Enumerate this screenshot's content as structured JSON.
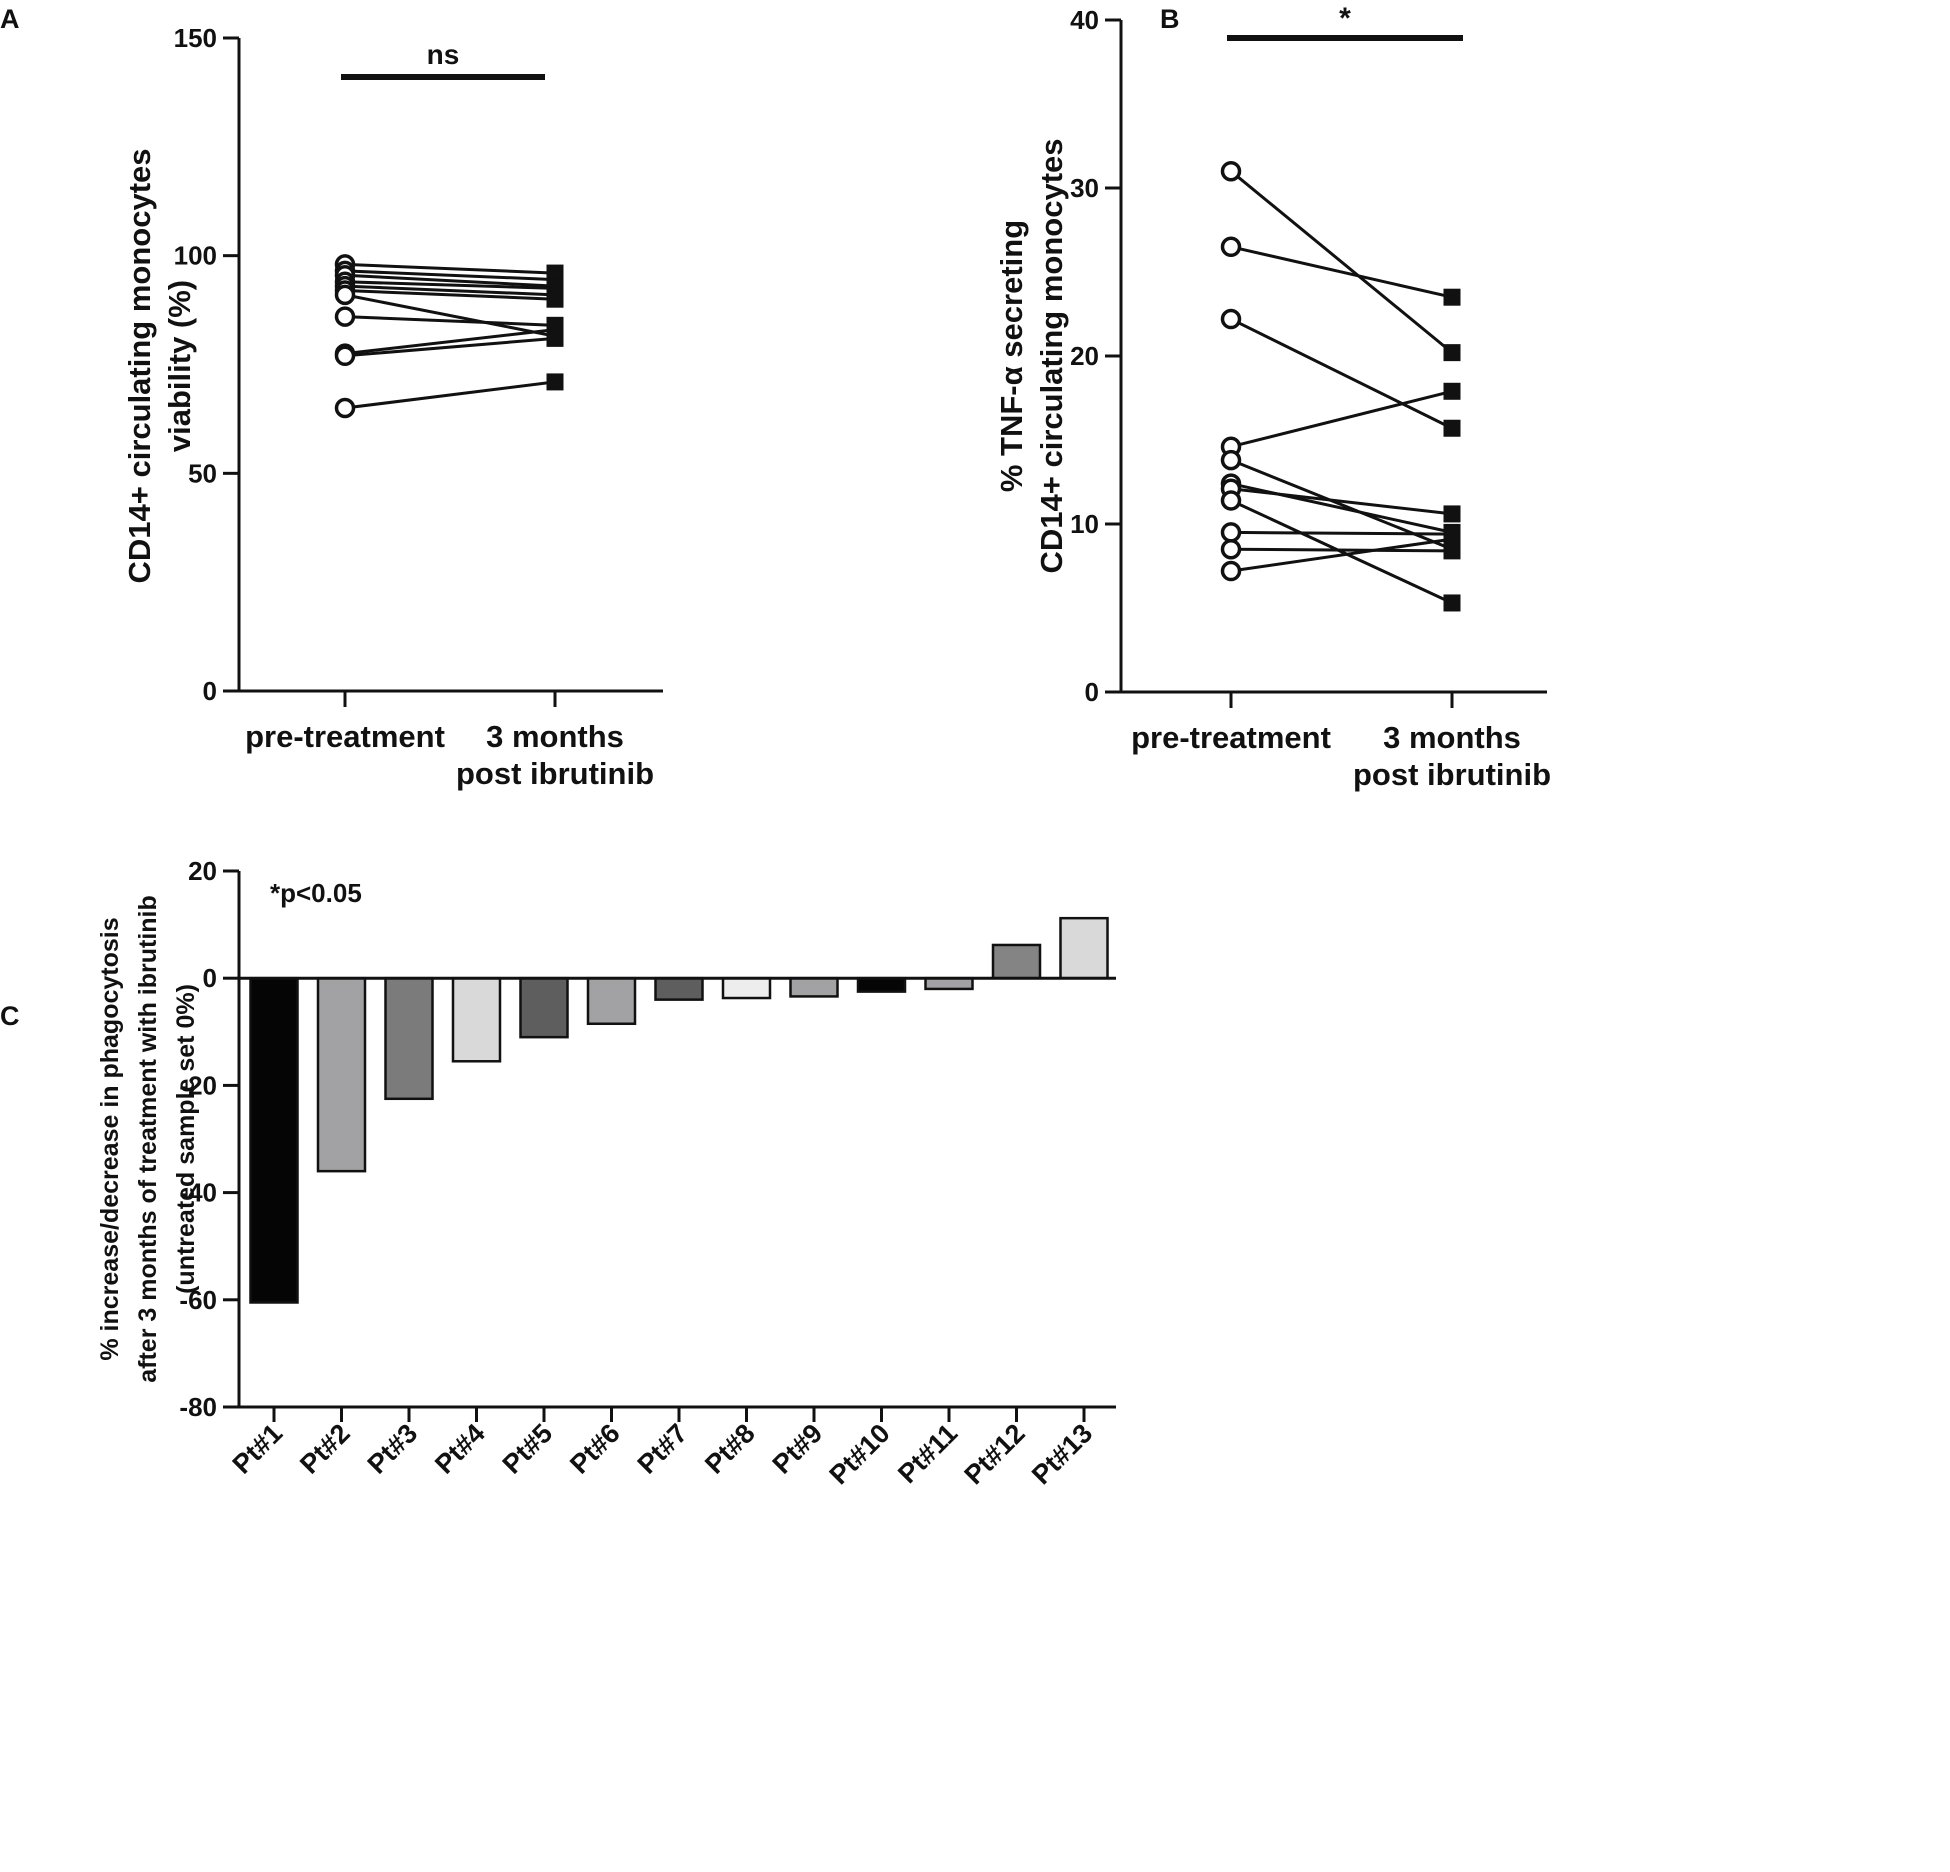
{
  "chart_data": [
    {
      "panel": "A",
      "type": "paired-scatter",
      "categories": [
        "pre-treatment",
        "3 months\npost ibrutinib"
      ],
      "ylabel": "CD14+ circulating monocytes\nviability  (%)",
      "ylim": [
        0,
        150
      ],
      "yticks": [
        0,
        50,
        100,
        150
      ],
      "significance": "ns",
      "pairs": [
        [
          98,
          96
        ],
        [
          96.5,
          94.5
        ],
        [
          95.5,
          93
        ],
        [
          94,
          92.5
        ],
        [
          93,
          91
        ],
        [
          92,
          90
        ],
        [
          91,
          81.5
        ],
        [
          86,
          84
        ],
        [
          77.5,
          83
        ],
        [
          77,
          81
        ],
        [
          65,
          71
        ]
      ]
    },
    {
      "panel": "B",
      "type": "paired-scatter",
      "categories": [
        "pre-treatment",
        "3 months\npost ibrutinib"
      ],
      "ylabel": "% TNF-α secreting\nCD14+ circulating monocytes",
      "ylim": [
        0,
        40
      ],
      "yticks": [
        0,
        10,
        20,
        30,
        40
      ],
      "significance": "*",
      "pairs": [
        [
          31,
          20.2
        ],
        [
          26.5,
          23.5
        ],
        [
          22.2,
          15.7
        ],
        [
          14.6,
          17.9
        ],
        [
          13.8,
          8.5
        ],
        [
          12.4,
          9.5
        ],
        [
          12.1,
          10.6
        ],
        [
          11.4,
          5.3
        ],
        [
          9.5,
          9.4
        ],
        [
          8.5,
          8.4
        ],
        [
          7.2,
          9.1
        ]
      ]
    },
    {
      "panel": "C",
      "type": "bar",
      "categories": [
        "Pt#1",
        "Pt#2",
        "Pt#3",
        "Pt#4",
        "Pt#5",
        "Pt#6",
        "Pt#7",
        "Pt#8",
        "Pt#9",
        "Pt#10",
        "Pt#11",
        "Pt#12",
        "Pt#13"
      ],
      "values": [
        -60.5,
        -36,
        -22.5,
        -15.5,
        -11,
        -8.5,
        -4,
        -3.7,
        -3.4,
        -2.5,
        -2,
        6.2,
        11.2
      ],
      "colors": [
        "#050505",
        "#a2a2a4",
        "#7b7b7b",
        "#d9d9d9",
        "#5e5e5e",
        "#a2a2a4",
        "#5e5e5e",
        "#ededed",
        "#a2a2a4",
        "#050505",
        "#a2a2a4",
        "#848484",
        "#d9d9d9"
      ],
      "ylabel": "% increase/decrease in phagocytosis\nafter 3 months of treatment with ibrutinib\n(untreated sample set 0%)",
      "ylim": [
        -80,
        20
      ],
      "yticks": [
        -80,
        -60,
        -40,
        -20,
        0,
        20
      ],
      "annotation": "*p<0.05"
    }
  ]
}
